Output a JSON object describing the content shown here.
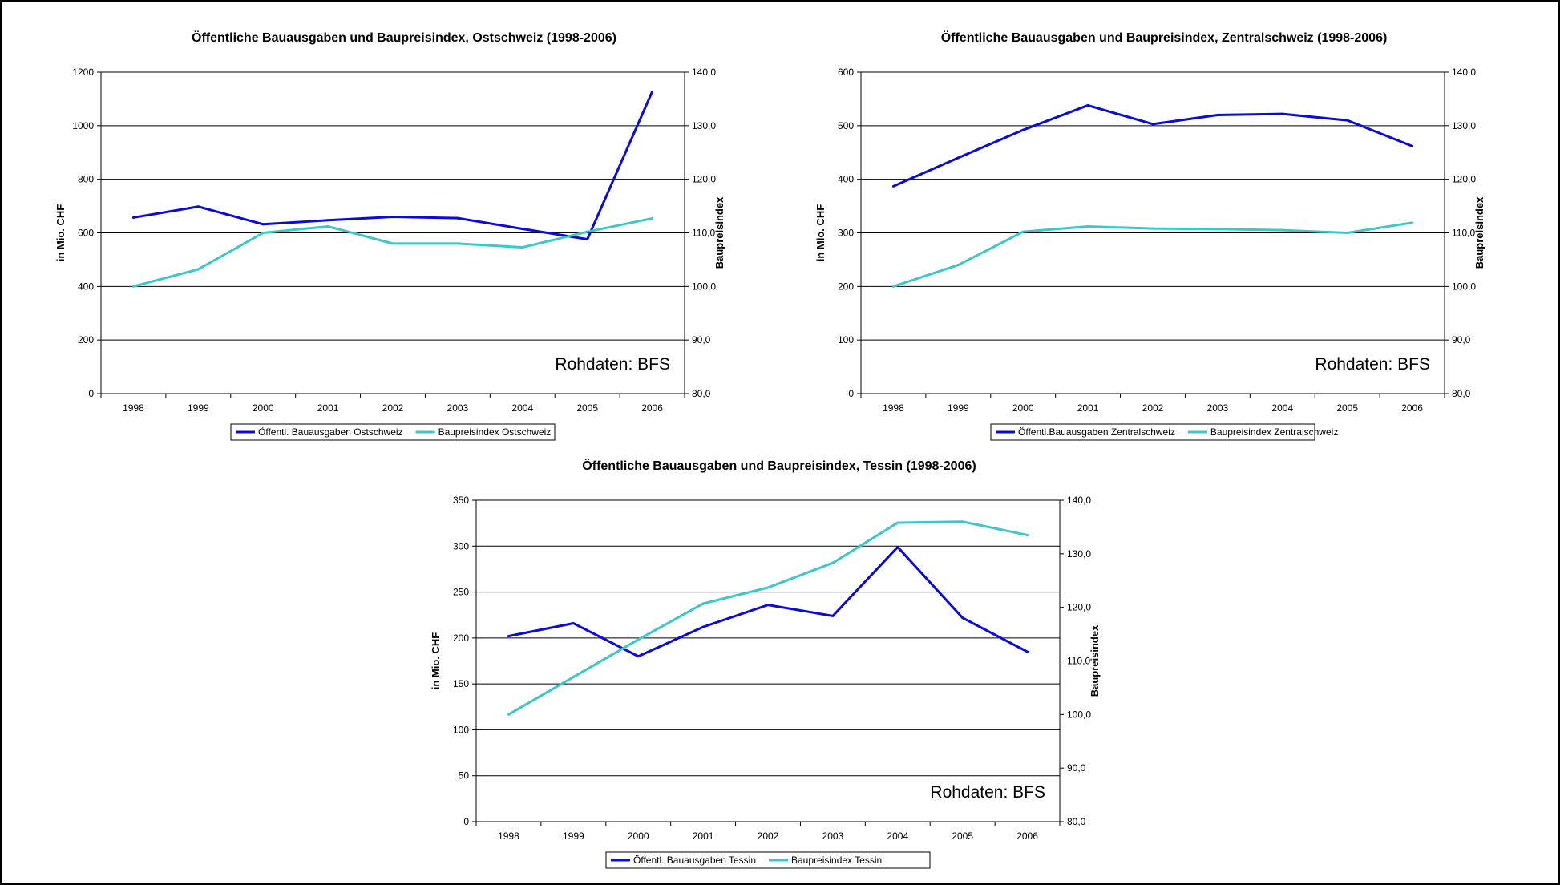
{
  "colors": {
    "bauausgaben": "#0a0adb",
    "baupreisindex": "#3cc8c8"
  },
  "chart_data": [
    {
      "type": "line",
      "title": "Öffentliche Bauausgaben und Baupreisindex, Ostschweiz (1998-2006)",
      "ylabel": "in Mio. CHF",
      "y2label": "Baupreisindex",
      "source_note": "Rohdaten: BFS",
      "categories": [
        "1998",
        "1999",
        "2000",
        "2001",
        "2002",
        "2003",
        "2004",
        "2005",
        "2006"
      ],
      "ylim": [
        0,
        1200
      ],
      "yticks": [
        "0",
        "200",
        "400",
        "600",
        "800",
        "1000",
        "1200"
      ],
      "y2lim": [
        80,
        140
      ],
      "y2ticks": [
        "80,0",
        "90,0",
        "100,0",
        "110,0",
        "120,0",
        "130,0",
        "140,0"
      ],
      "grid": true,
      "legend_position": "bottom",
      "series": [
        {
          "name": "Öffentl. Bauausgaben Ostschweiz",
          "axis": "left",
          "color_key": "bauausgaben",
          "values": [
            657,
            698,
            632,
            647,
            660,
            655,
            615,
            576,
            1127
          ]
        },
        {
          "name": "Baupreisindex Ostschweiz",
          "axis": "right",
          "color_key": "baupreisindex",
          "values": [
            100.0,
            103.2,
            110.0,
            111.2,
            108.0,
            108.0,
            107.3,
            110.2,
            112.7
          ]
        }
      ]
    },
    {
      "type": "line",
      "title": "Öffentliche Bauausgaben und Baupreisindex, Zentralschweiz (1998-2006)",
      "ylabel": "in Mio. CHF",
      "y2label": "Baupreisindex",
      "source_note": "Rohdaten: BFS",
      "categories": [
        "1998",
        "1999",
        "2000",
        "2001",
        "2002",
        "2003",
        "2004",
        "2005",
        "2006"
      ],
      "ylim": [
        0,
        600
      ],
      "yticks": [
        "0",
        "100",
        "200",
        "300",
        "400",
        "500",
        "600"
      ],
      "y2lim": [
        80,
        140
      ],
      "y2ticks": [
        "80,0",
        "90,0",
        "100,0",
        "110,0",
        "120,0",
        "130,0",
        "140,0"
      ],
      "grid": true,
      "legend_position": "bottom",
      "series": [
        {
          "name": "Öffentl.Bauausgaben Zentralschweiz",
          "axis": "left",
          "color_key": "bauausgaben",
          "values": [
            387,
            440,
            492,
            538,
            503,
            520,
            522,
            510,
            462
          ]
        },
        {
          "name": "Baupreisindex Zentralschweiz",
          "axis": "right",
          "color_key": "baupreisindex",
          "values": [
            100.0,
            104.0,
            110.2,
            111.2,
            110.8,
            110.7,
            110.5,
            110.0,
            111.9
          ]
        }
      ]
    },
    {
      "type": "line",
      "title": "Öffentliche Bauausgaben und Baupreisindex, Tessin (1998-2006)",
      "ylabel": "in Mio. CHF",
      "y2label": "Baupreisindex",
      "source_note": "Rohdaten: BFS",
      "categories": [
        "1998",
        "1999",
        "2000",
        "2001",
        "2002",
        "2003",
        "2004",
        "2005",
        "2006"
      ],
      "ylim": [
        0,
        350
      ],
      "yticks": [
        "0",
        "50",
        "100",
        "150",
        "200",
        "250",
        "300",
        "350"
      ],
      "y2lim": [
        80,
        140
      ],
      "y2ticks": [
        "80,0",
        "90,0",
        "100,0",
        "110,0",
        "120,0",
        "130,0",
        "140,0"
      ],
      "grid": true,
      "legend_position": "bottom",
      "series": [
        {
          "name": "Öffentl. Bauausgaben Tessin",
          "axis": "left",
          "color_key": "bauausgaben",
          "values": [
            202,
            216,
            180,
            212,
            236,
            224,
            299,
            222,
            185
          ]
        },
        {
          "name": "Baupreisindex Tessin",
          "axis": "right",
          "color_key": "baupreisindex",
          "values": [
            100.0,
            107.0,
            114.0,
            120.7,
            123.7,
            128.3,
            135.8,
            136.0,
            133.5
          ]
        }
      ]
    }
  ]
}
